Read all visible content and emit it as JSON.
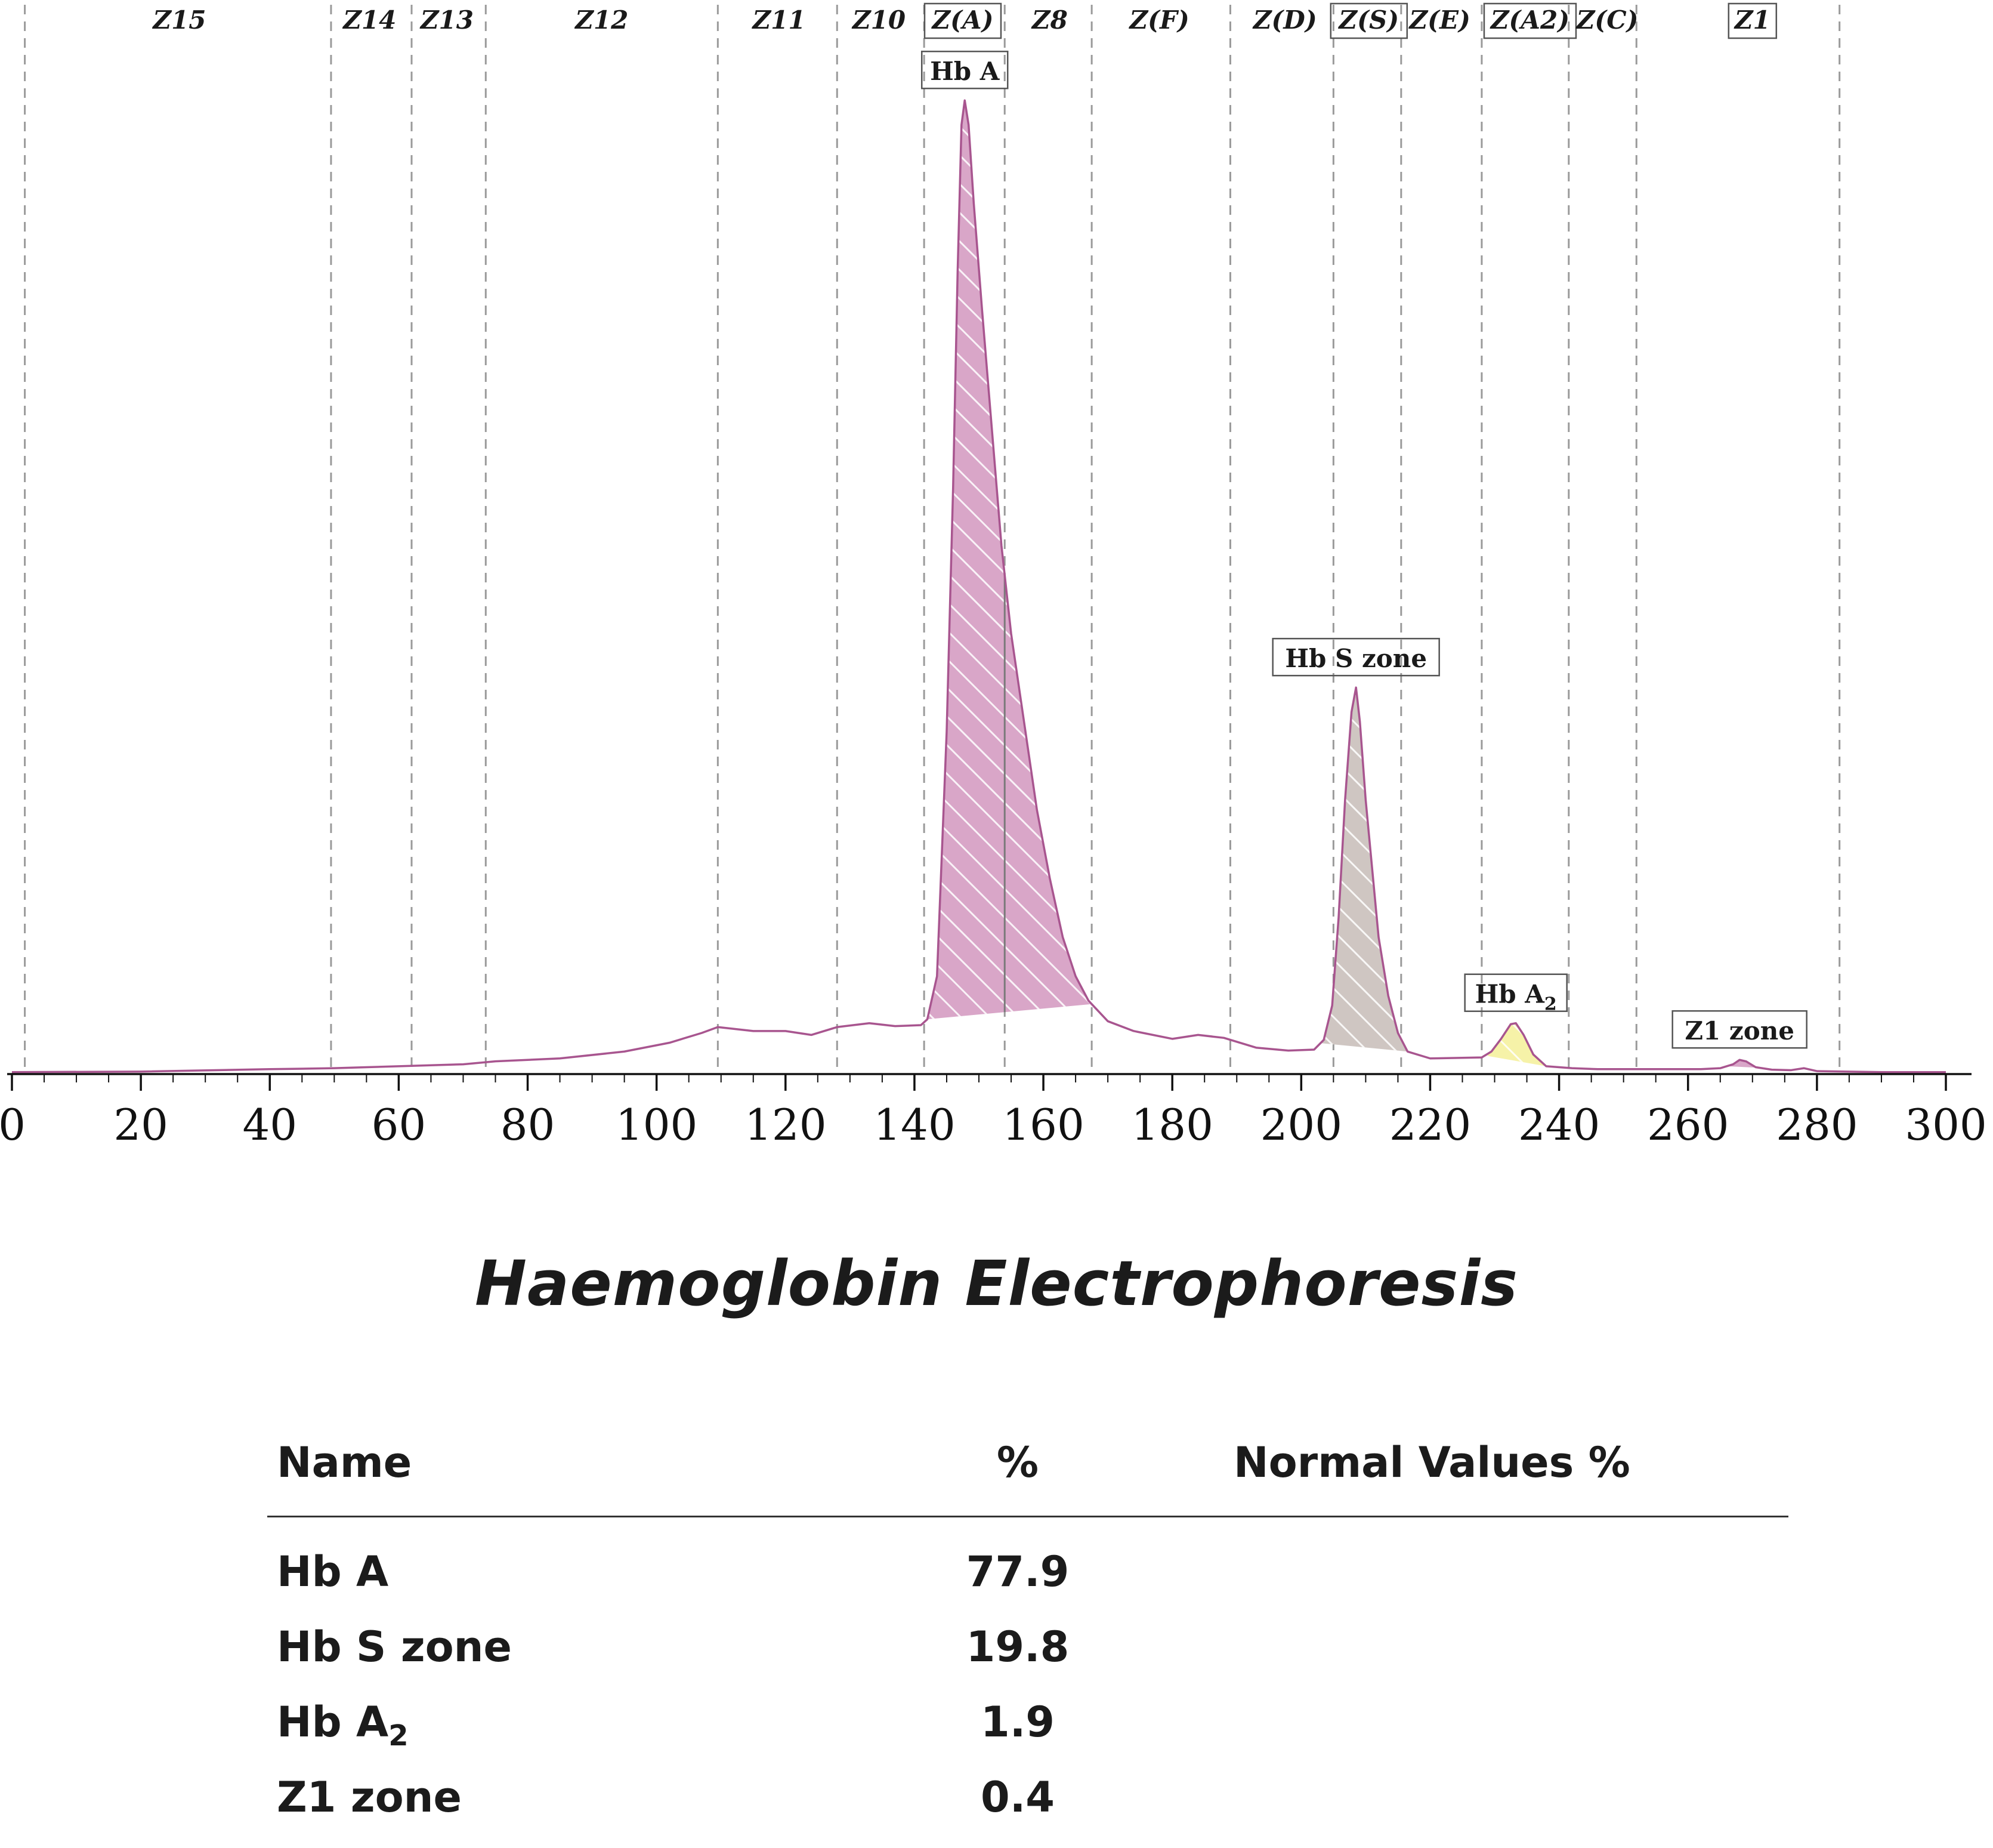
{
  "chart_data": {
    "type": "area",
    "title": "Haemoglobin Electrophoresis",
    "xlabel": "",
    "ylabel": "",
    "xlim": [
      0,
      300
    ],
    "ylim": [
      0,
      100
    ],
    "x_ticks": [
      0,
      20,
      40,
      60,
      80,
      100,
      120,
      140,
      160,
      180,
      200,
      220,
      240,
      260,
      280,
      300
    ],
    "zone_boundaries": [
      2,
      49.5,
      62,
      73.5,
      109.5,
      128,
      141.5,
      154,
      167.5,
      189,
      205,
      215.5,
      228,
      241.5,
      252,
      283.5
    ],
    "zones": [
      {
        "label": "Z15",
        "x": 26,
        "boxed": false
      },
      {
        "label": "Z14",
        "x": 55.5,
        "boxed": false
      },
      {
        "label": "Z13",
        "x": 67.5,
        "boxed": false
      },
      {
        "label": "Z12",
        "x": 91.5,
        "boxed": false
      },
      {
        "label": "Z11",
        "x": 119,
        "boxed": false
      },
      {
        "label": "Z10",
        "x": 134.5,
        "boxed": false
      },
      {
        "label": "Z(A)",
        "x": 147.5,
        "boxed": true
      },
      {
        "label": "Z8",
        "x": 161,
        "boxed": false
      },
      {
        "label": "Z(F)",
        "x": 178,
        "boxed": false
      },
      {
        "label": "Z(D)",
        "x": 197.5,
        "boxed": false
      },
      {
        "label": "Z(S)",
        "x": 210.5,
        "boxed": true
      },
      {
        "label": "Z(E)",
        "x": 221.5,
        "boxed": false
      },
      {
        "label": "Z(A2)",
        "x": 235.5,
        "boxed": true
      },
      {
        "label": "Z(C)",
        "x": 247.5,
        "boxed": false
      },
      {
        "label": "Z1",
        "x": 270,
        "boxed": true
      }
    ],
    "curve": [
      [
        0,
        0.2
      ],
      [
        20,
        0.25
      ],
      [
        40,
        0.5
      ],
      [
        50,
        0.6
      ],
      [
        55,
        0.7
      ],
      [
        60,
        0.8
      ],
      [
        70,
        1.0
      ],
      [
        75,
        1.3
      ],
      [
        85,
        1.6
      ],
      [
        95,
        2.3
      ],
      [
        102,
        3.2
      ],
      [
        107,
        4.2
      ],
      [
        109.5,
        4.8
      ],
      [
        115,
        4.4
      ],
      [
        120,
        4.4
      ],
      [
        124,
        4.0
      ],
      [
        128,
        4.8
      ],
      [
        133,
        5.2
      ],
      [
        137,
        4.9
      ],
      [
        141,
        5.0
      ],
      [
        142,
        5.6
      ],
      [
        143.5,
        10
      ],
      [
        145,
        35
      ],
      [
        146,
        60
      ],
      [
        146.7,
        82
      ],
      [
        147.3,
        97
      ],
      [
        147.8,
        99.5
      ],
      [
        148.4,
        97
      ],
      [
        149.2,
        89
      ],
      [
        150.5,
        78
      ],
      [
        152,
        66
      ],
      [
        153.5,
        54
      ],
      [
        155,
        45
      ],
      [
        157,
        36
      ],
      [
        159,
        27
      ],
      [
        161,
        20
      ],
      [
        163,
        14
      ],
      [
        165,
        10
      ],
      [
        167,
        7.5
      ],
      [
        170,
        5.4
      ],
      [
        174,
        4.4
      ],
      [
        180,
        3.6
      ],
      [
        184,
        4.0
      ],
      [
        188,
        3.7
      ],
      [
        193,
        2.7
      ],
      [
        198,
        2.4
      ],
      [
        202,
        2.5
      ],
      [
        203.5,
        3.5
      ],
      [
        204.8,
        7
      ],
      [
        205.8,
        16
      ],
      [
        206.8,
        28
      ],
      [
        207.8,
        37
      ],
      [
        208.5,
        39.5
      ],
      [
        209.1,
        36
      ],
      [
        210,
        28
      ],
      [
        211,
        21
      ],
      [
        212,
        14
      ],
      [
        213.5,
        8
      ],
      [
        215,
        4.2
      ],
      [
        216.5,
        2.3
      ],
      [
        220,
        1.6
      ],
      [
        228,
        1.7
      ],
      [
        229.5,
        2.3
      ],
      [
        231,
        3.6
      ],
      [
        232.5,
        5.1
      ],
      [
        233.3,
        5.2
      ],
      [
        234.5,
        4.0
      ],
      [
        236,
        2.0
      ],
      [
        238,
        0.8
      ],
      [
        242,
        0.6
      ],
      [
        246,
        0.5
      ],
      [
        262,
        0.5
      ],
      [
        265,
        0.6
      ],
      [
        267,
        1.0
      ],
      [
        268,
        1.45
      ],
      [
        269,
        1.3
      ],
      [
        270.5,
        0.7
      ],
      [
        273,
        0.45
      ],
      [
        276,
        0.4
      ],
      [
        278,
        0.6
      ],
      [
        280,
        0.3
      ],
      [
        290,
        0.2
      ],
      [
        300,
        0.2
      ]
    ],
    "peaks": [
      {
        "name": "Hb A",
        "label": "Hb A",
        "from": 142,
        "to": 167.5,
        "color": "#d9a6c8",
        "label_x": 147.8,
        "apex": 99.5
      },
      {
        "name": "Hb S zone",
        "label": "Hb S zone",
        "from": 203,
        "to": 216.5,
        "color": "#cfc6c2",
        "label_x": 208.5,
        "apex": 39.5
      },
      {
        "name": "Hb A2",
        "label": "Hb A",
        "label_sub": "2",
        "from": 228.5,
        "to": 238,
        "color": "#f6f2a8",
        "label_x": 233.3,
        "apex": 5.2
      },
      {
        "name": "Z1 zone",
        "label": "Z1 zone",
        "from": 266,
        "to": 271,
        "color": "#d9a6c8",
        "label_x": 268,
        "apex": 1.45
      }
    ],
    "line_color": "#a8558f",
    "grid": false,
    "legend": "none"
  },
  "results": {
    "header": {
      "name": "Name",
      "pct": "%",
      "normal": "Normal Values %"
    },
    "rows": [
      {
        "name": "Hb A",
        "sub": "",
        "pct": "77.9",
        "normal": ""
      },
      {
        "name": "Hb S zone",
        "sub": "",
        "pct": "19.8",
        "normal": ""
      },
      {
        "name": "Hb A",
        "sub": "2",
        "pct": "1.9",
        "normal": ""
      },
      {
        "name": "Z1 zone",
        "sub": "",
        "pct": "0.4",
        "normal": ""
      }
    ]
  }
}
